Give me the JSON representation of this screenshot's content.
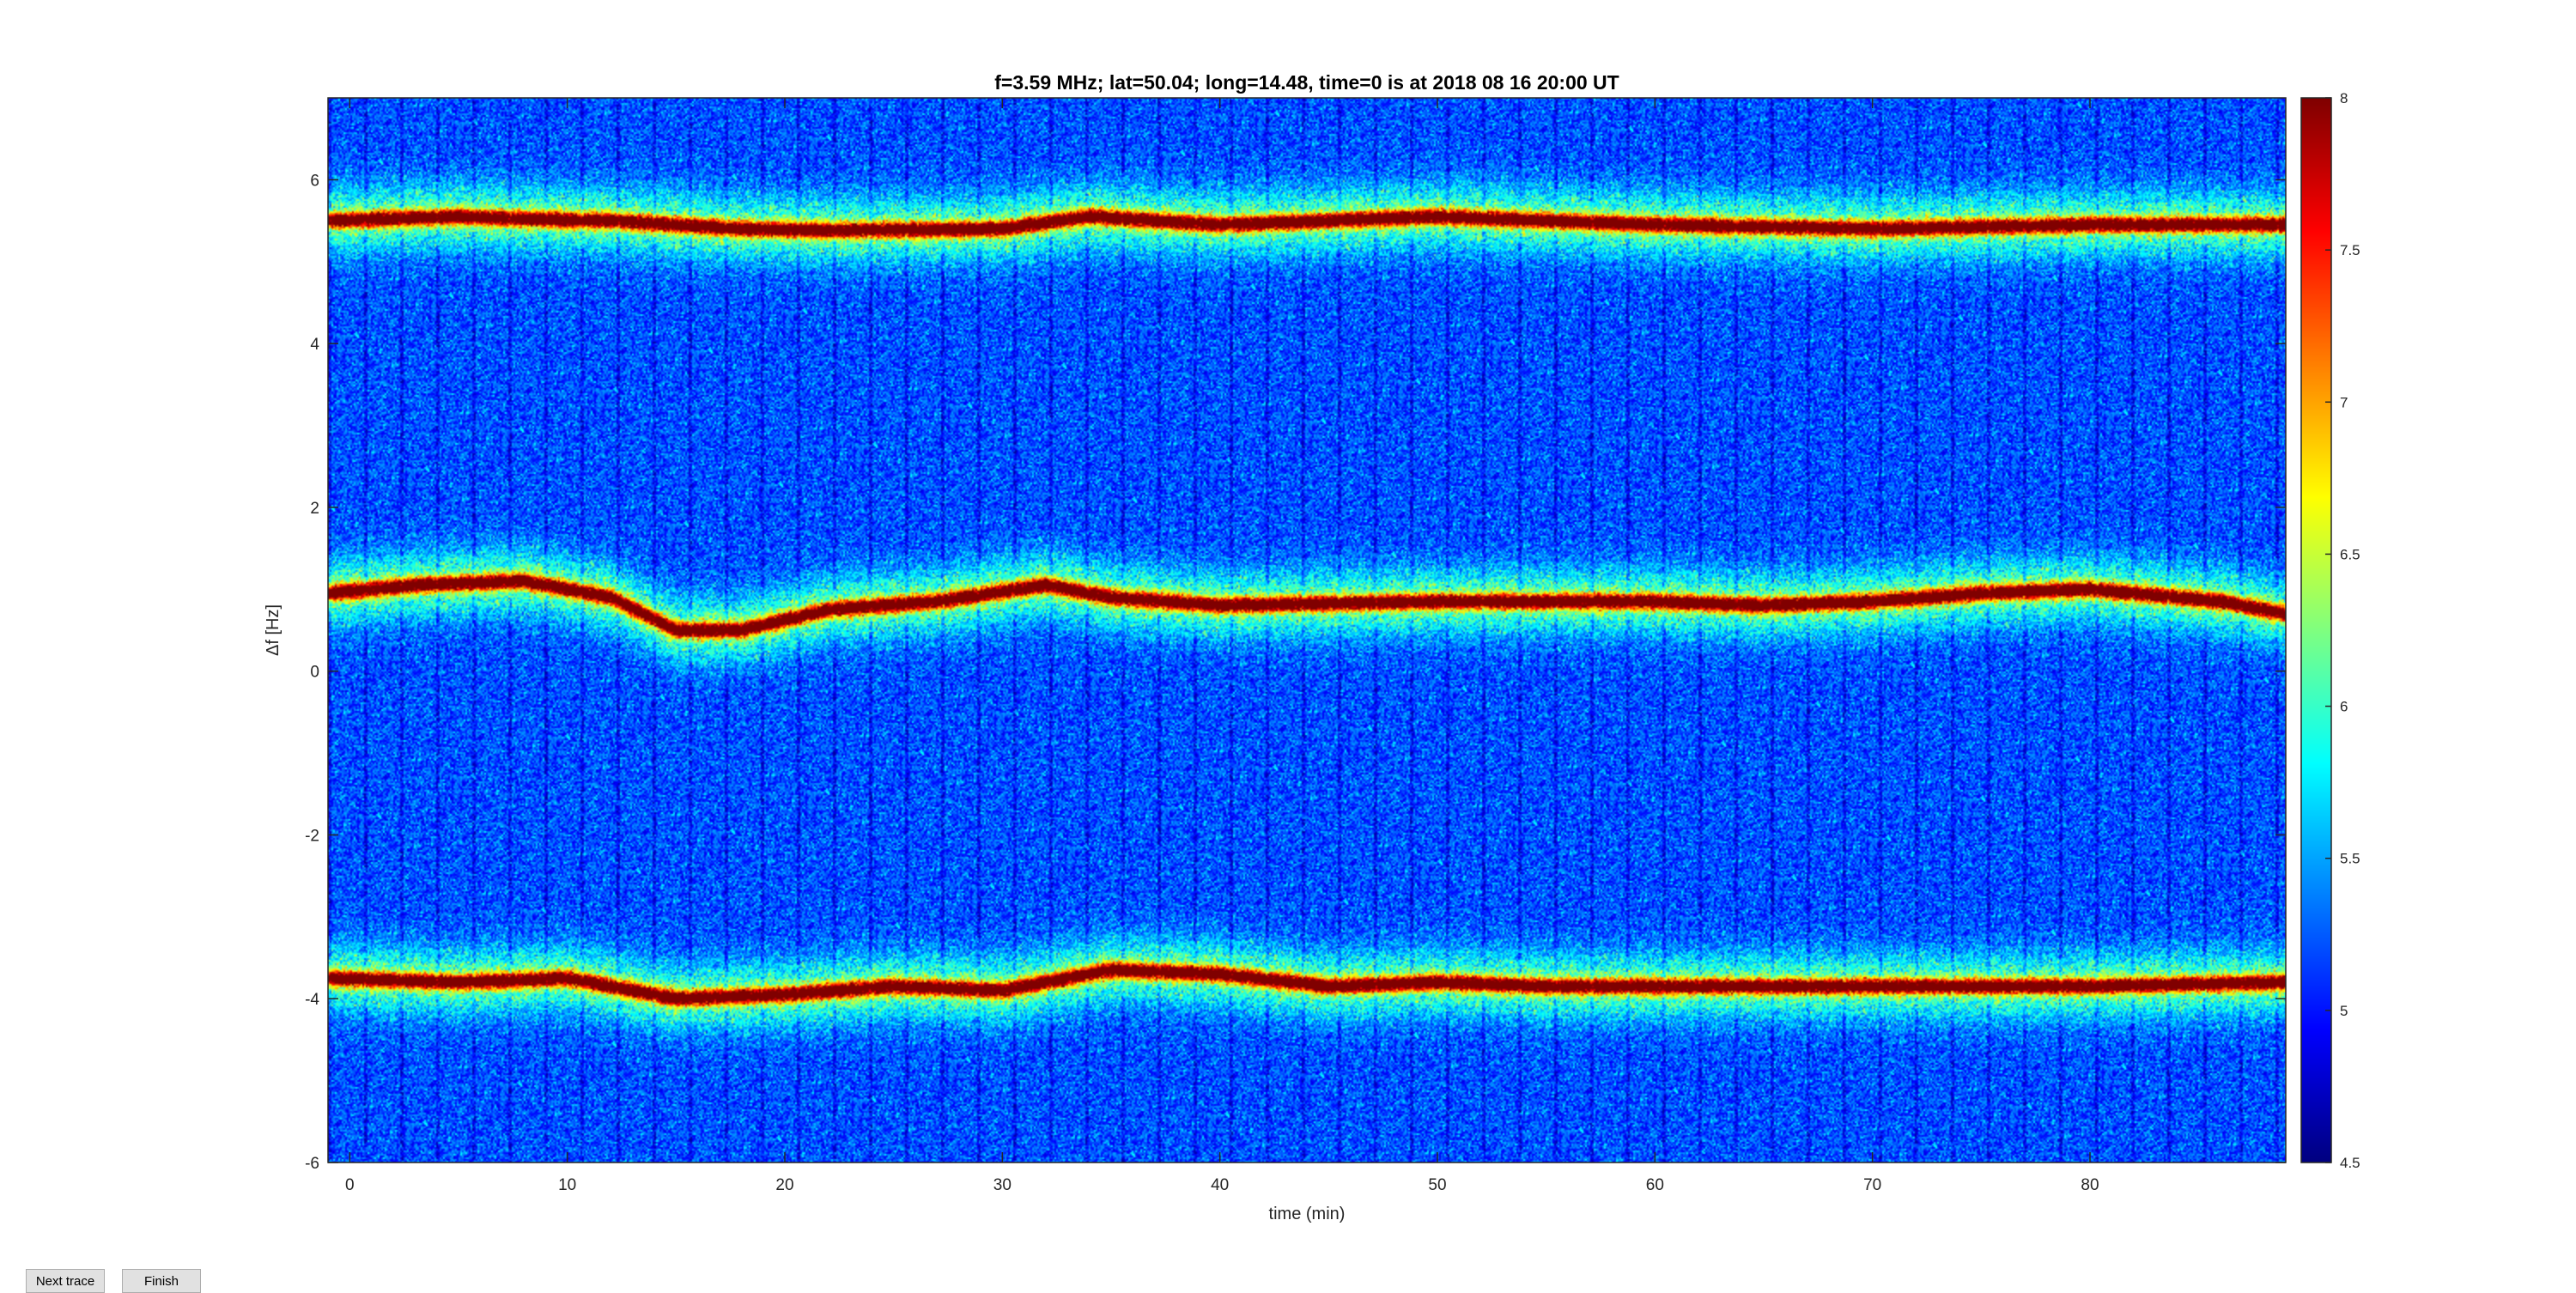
{
  "buttons": {
    "next_trace": "Next trace",
    "finish": "Finish"
  },
  "chart_data": {
    "type": "heatmap",
    "title": "f=3.59 MHz;  lat=50.04; long=14.48, time=0 is at 2018 08 16 20:00 UT",
    "xlabel": "time (min)",
    "ylabel": "Δf [Hz]",
    "xlim": [
      -1,
      89
    ],
    "ylim": [
      -6,
      7
    ],
    "xticks": [
      0,
      10,
      20,
      30,
      40,
      50,
      60,
      70,
      80
    ],
    "yticks": [
      -6,
      -4,
      -2,
      0,
      2,
      4,
      6
    ],
    "colorbar": {
      "colormap": "jet",
      "range": [
        4.5,
        8
      ],
      "ticks": [
        4.5,
        5,
        5.5,
        6,
        6.5,
        7,
        7.5,
        8
      ]
    },
    "traces": [
      {
        "t": [
          -1,
          5,
          8,
          12,
          15,
          18,
          22,
          30,
          34,
          40,
          50,
          60,
          70,
          80,
          89
        ],
        "df": [
          5.5,
          5.55,
          5.52,
          5.5,
          5.45,
          5.4,
          5.38,
          5.4,
          5.55,
          5.45,
          5.55,
          5.45,
          5.4,
          5.45,
          5.45
        ]
      },
      {
        "t": [
          -1,
          3,
          8,
          12,
          15,
          18,
          22,
          27,
          32,
          35,
          40,
          50,
          60,
          65,
          70,
          75,
          80,
          86,
          89
        ],
        "df": [
          0.95,
          1.05,
          1.1,
          0.9,
          0.5,
          0.5,
          0.75,
          0.85,
          1.05,
          0.9,
          0.8,
          0.85,
          0.85,
          0.8,
          0.85,
          0.95,
          1.0,
          0.85,
          0.7
        ]
      },
      {
        "t": [
          -1,
          5,
          10,
          15,
          20,
          25,
          30,
          35,
          40,
          45,
          50,
          55,
          60,
          70,
          80,
          89
        ],
        "df": [
          -3.75,
          -3.8,
          -3.75,
          -4.0,
          -3.95,
          -3.85,
          -3.9,
          -3.65,
          -3.7,
          -3.85,
          -3.8,
          -3.85,
          -3.85,
          -3.85,
          -3.85,
          -3.8
        ]
      }
    ]
  }
}
